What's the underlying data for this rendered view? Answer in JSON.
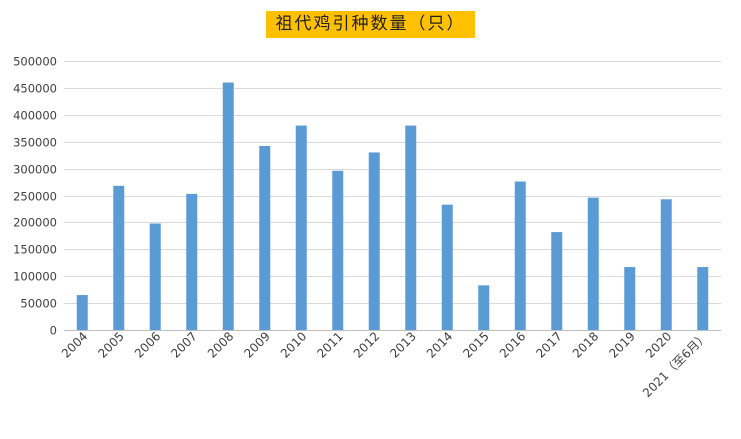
{
  "chart_data": {
    "type": "bar",
    "title": "祖代鸡引种数量（只）",
    "categories": [
      "2004",
      "2005",
      "2006",
      "2007",
      "2008",
      "2009",
      "2010",
      "2011",
      "2012",
      "2013",
      "2014",
      "2015",
      "2016",
      "2017",
      "2018",
      "2019",
      "2020",
      "2021（至6月）"
    ],
    "series": [
      {
        "values": [
          65000,
          268000,
          198000,
          253000,
          460000,
          342000,
          380000,
          296000,
          330000,
          380000,
          233000,
          83000,
          276000,
          182000,
          246000,
          117000,
          243000,
          117000
        ]
      }
    ],
    "ylim": [
      0,
      500000
    ],
    "yticks": [
      0,
      50000,
      100000,
      150000,
      200000,
      250000,
      300000,
      350000,
      400000,
      450000,
      500000
    ],
    "grid": true,
    "bar_color": "#5b9bd5",
    "title_background": "#ffc000"
  }
}
